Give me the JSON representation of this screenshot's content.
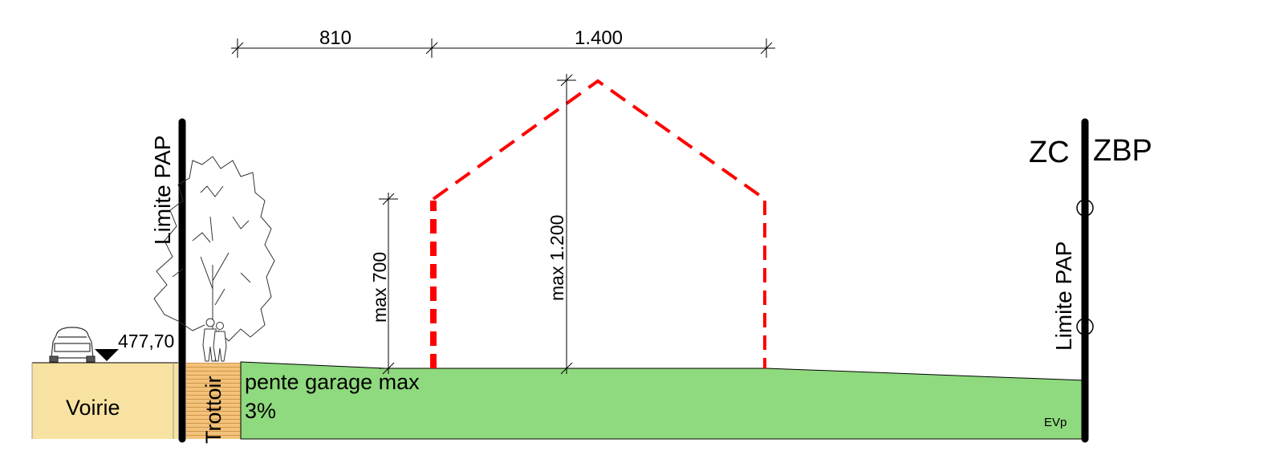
{
  "dimensions": {
    "top_left": "810",
    "top_right": "1.400",
    "eave_height": "max 700",
    "ridge_height": "max 1.200"
  },
  "labels": {
    "limite_left": "Limite PAP",
    "limite_right": "Limite PAP",
    "zone_left": "ZC",
    "zone_right": "ZBP",
    "level": "477,70",
    "road": "Voirie",
    "sidewalk": "Trottoir",
    "garage_slope_line1": "pente garage max",
    "garage_slope_line2": "3%",
    "evp": "EVp"
  },
  "colors": {
    "road": "#F7E2A1",
    "sidewalk": "#F3C27A",
    "garden": "#8FD97E",
    "building": "#FF0000"
  }
}
